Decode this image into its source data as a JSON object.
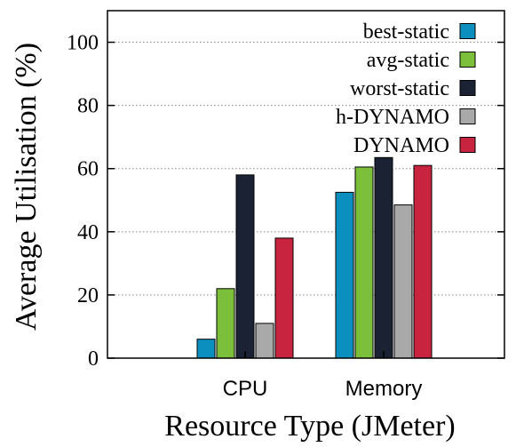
{
  "chart_data": {
    "type": "bar",
    "xlabel": "Resource Type (JMeter)",
    "ylabel": "Average Utilisation (%)",
    "ylim": [
      0,
      110
    ],
    "yticks": [
      0,
      20,
      40,
      60,
      80,
      100
    ],
    "categories": [
      "CPU",
      "Memory"
    ],
    "grid": "horizontal dotted",
    "legend_position": "top-right",
    "series": [
      {
        "name": "best-static",
        "color": "#0a8fbf",
        "values": [
          6,
          52.5
        ]
      },
      {
        "name": "avg-static",
        "color": "#7cbf3a",
        "values": [
          22,
          60.5
        ]
      },
      {
        "name": "worst-static",
        "color": "#1a2233",
        "values": [
          58,
          63.5
        ]
      },
      {
        "name": "h-DYNAMO",
        "color": "#a9a9a9",
        "values": [
          11,
          48.5
        ]
      },
      {
        "name": "DYNAMO",
        "color": "#c8233f",
        "values": [
          38,
          61
        ]
      }
    ]
  }
}
